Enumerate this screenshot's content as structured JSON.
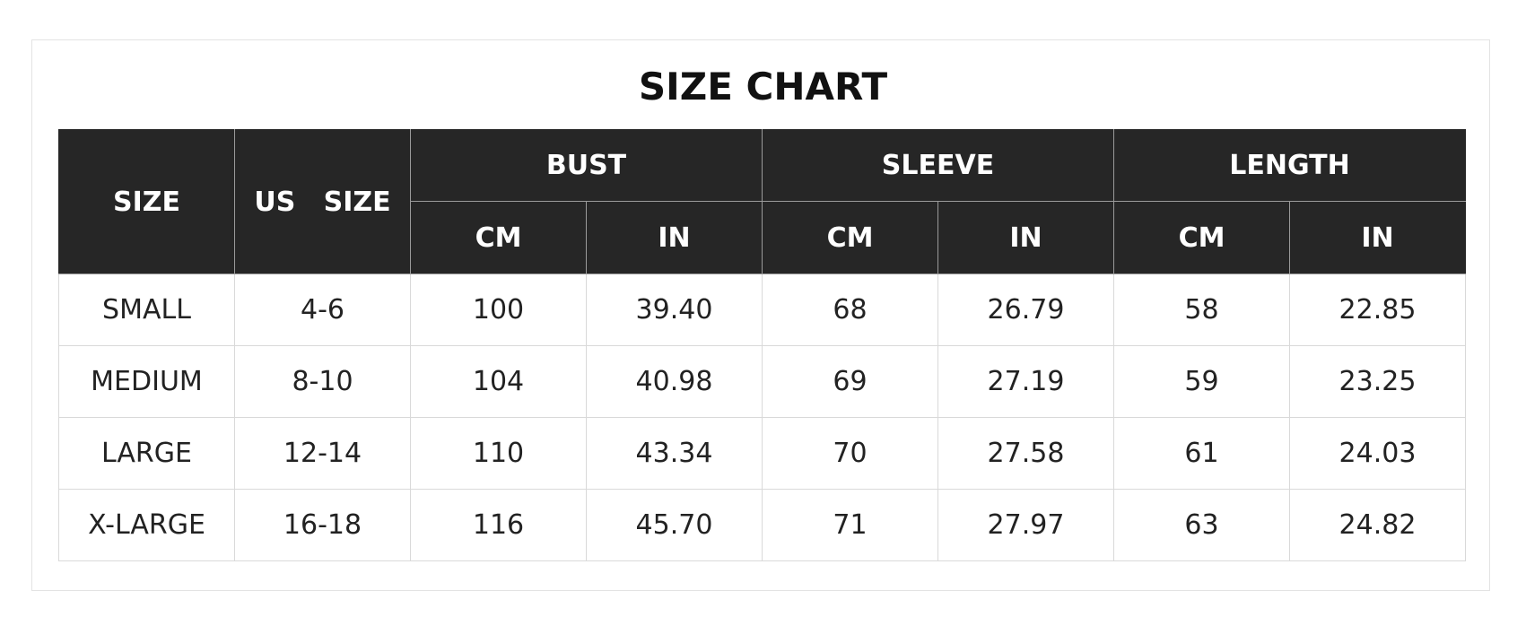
{
  "title": "SIZE CHART",
  "headers": {
    "size": "SIZE",
    "us_size": "US   SIZE",
    "groups": [
      "BUST",
      "SLEEVE",
      "LENGTH"
    ],
    "units": [
      "CM",
      "IN",
      "CM",
      "IN",
      "CM",
      "IN"
    ]
  },
  "rows": [
    [
      "SMALL",
      "4-6",
      "100",
      "39.40",
      "68",
      "26.79",
      "58",
      "22.85"
    ],
    [
      "MEDIUM",
      "8-10",
      "104",
      "40.98",
      "69",
      "27.19",
      "59",
      "23.25"
    ],
    [
      "LARGE",
      "12-14",
      "110",
      "43.34",
      "70",
      "27.58",
      "61",
      "24.03"
    ],
    [
      "X-LARGE",
      "16-18",
      "116",
      "45.70",
      "71",
      "27.97",
      "63",
      "24.82"
    ]
  ],
  "colors": {
    "header_bg": "#262626",
    "header_text": "#ffffff",
    "grid": "#d9d9d9"
  }
}
